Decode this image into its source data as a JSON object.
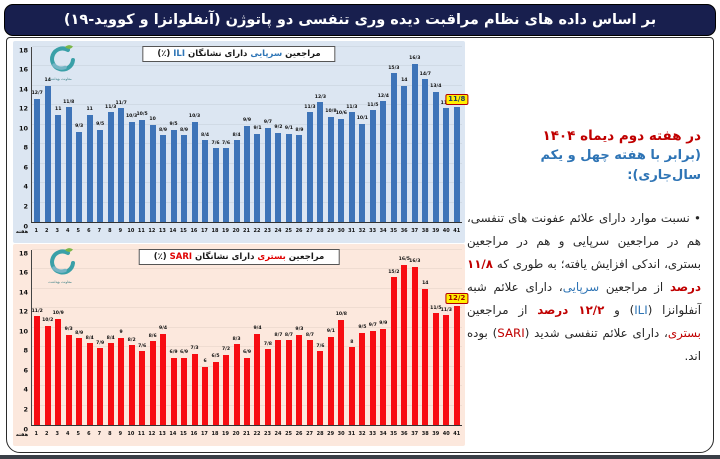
{
  "header": {
    "title": "بر اساس داده های نظام مراقبت دیده وری تنفسی دو پاتوژن (آنفلوانزا و کووید-۱۹)"
  },
  "logo": {
    "caption": "معاونت بهداشت"
  },
  "right_panel": {
    "heading_red": "در هفته دوم دیماه ۱۴۰۴",
    "heading_blue": "(برابر با هفته چهل و یکم سال‌جاری):",
    "bullet_segments": [
      {
        "t": "• نسبت موارد دارای علائم عفونت های تنفسی، هم در مراجعین سرپایی و هم در مراجعین بستری، اندکی افزایش یافته؛ به طوری که ",
        "c": "plain"
      },
      {
        "t": "۱۱/۸ درصد",
        "c": "red"
      },
      {
        "t": " از مراجعین ",
        "c": "plain"
      },
      {
        "t": "سرپایی",
        "c": "blue"
      },
      {
        "t": "، دارای علائم شبه آنفلوانزا (",
        "c": "plain"
      },
      {
        "t": "ILI",
        "c": "blue"
      },
      {
        "t": ") و ",
        "c": "plain"
      },
      {
        "t": "۱۲/۲ درصد",
        "c": "red"
      },
      {
        "t": " از مراجعین ",
        "c": "plain"
      },
      {
        "t": "بستری",
        "c": "red-plain"
      },
      {
        "t": "، دارای علائم تنفسی شدید (",
        "c": "plain"
      },
      {
        "t": "SARI",
        "c": "red-plain"
      },
      {
        "t": ") بوده اند.",
        "c": "plain"
      }
    ]
  },
  "chart_data": [
    {
      "id": "ili",
      "type": "bar",
      "title_segments": [
        {
          "t": "مراجعین ",
          "c": "plain"
        },
        {
          "t": "سرپایی",
          "c": "accent"
        },
        {
          "t": " دارای نشانگان ",
          "c": "plain"
        },
        {
          "t": "ILI",
          "c": "accent"
        },
        {
          "t": " (٪)",
          "c": "plain"
        }
      ],
      "xlabel": "هفته",
      "ylim": [
        0,
        18
      ],
      "ytick_step": 2,
      "categories": [
        1,
        2,
        3,
        4,
        5,
        6,
        7,
        8,
        9,
        10,
        11,
        12,
        13,
        14,
        15,
        16,
        17,
        18,
        19,
        20,
        21,
        22,
        23,
        24,
        25,
        26,
        27,
        28,
        29,
        30,
        31,
        32,
        33,
        34,
        35,
        36,
        37,
        38,
        39,
        40,
        41
      ],
      "values": [
        12.7,
        14,
        11,
        11.8,
        9.3,
        11,
        9.5,
        11.3,
        11.7,
        10.3,
        10.5,
        10,
        8.9,
        9.5,
        8.9,
        10.3,
        8.4,
        7.6,
        7.6,
        8.4,
        9.9,
        9.1,
        9.7,
        9.2,
        9.1,
        8.9,
        11.3,
        12.3,
        10.8,
        10.6,
        11.3,
        10.1,
        11.5,
        12.4,
        15.3,
        14,
        16.3,
        14.7,
        13.4,
        11.7,
        11.8
      ],
      "value_labels": [
        "12/7",
        "14",
        "11",
        "11/8",
        "9/3",
        "11",
        "9/5",
        "11/3",
        "11/7",
        "10/3",
        "10/5",
        "10",
        "8/9",
        "9/5",
        "8/9",
        "10/3",
        "8/4",
        "7/6",
        "7/6",
        "8/4",
        "9/9",
        "9/1",
        "9/7",
        "9/2",
        "9/1",
        "8/9",
        "11/3",
        "12/3",
        "10/8",
        "10/6",
        "11/3",
        "10/1",
        "11/5",
        "12/4",
        "15/3",
        "14",
        "16/3",
        "14/7",
        "13/4",
        "11/7",
        "11/8"
      ],
      "highlight": {
        "index": 40,
        "label": "11/8",
        "text_color": "#1f3864"
      },
      "bg_color": "#dce6f2",
      "bar_color": "#3e74b8",
      "accent_color": "#2e75b6",
      "legend_position": "none",
      "grid": true
    },
    {
      "id": "sari",
      "type": "bar",
      "title_segments": [
        {
          "t": "مراجعین ",
          "c": "plain"
        },
        {
          "t": "بستری",
          "c": "accent"
        },
        {
          "t": " دارای نشانگان ",
          "c": "plain"
        },
        {
          "t": "SARI",
          "c": "accent"
        },
        {
          "t": " (٪)",
          "c": "plain"
        }
      ],
      "xlabel": "هفته",
      "ylim": [
        0,
        18
      ],
      "ytick_step": 2,
      "categories": [
        1,
        2,
        3,
        4,
        5,
        6,
        7,
        8,
        9,
        10,
        11,
        12,
        13,
        14,
        15,
        16,
        17,
        18,
        19,
        20,
        21,
        22,
        23,
        24,
        25,
        26,
        27,
        28,
        29,
        30,
        31,
        32,
        33,
        34,
        35,
        36,
        37,
        38,
        39,
        40,
        41
      ],
      "values": [
        11.2,
        10.2,
        10.9,
        9.3,
        8.9,
        8.4,
        7.9,
        8.4,
        9,
        8.2,
        7.6,
        8.6,
        9.4,
        6.9,
        6.9,
        7.3,
        6,
        6.5,
        7.2,
        8.3,
        6.9,
        9.4,
        7.8,
        8.7,
        8.7,
        9.3,
        8.7,
        7.6,
        9.1,
        10.8,
        8,
        9.5,
        9.7,
        9.9,
        15.2,
        16.5,
        16.3,
        14,
        11.5,
        11.3,
        12.2
      ],
      "value_labels": [
        "11/2",
        "10/2",
        "10/9",
        "9/3",
        "8/9",
        "8/4",
        "7/9",
        "8/4",
        "9",
        "8/2",
        "7/6",
        "8/6",
        "9/4",
        "6/9",
        "6/9",
        "7/3",
        "6",
        "6/5",
        "7/2",
        "8/3",
        "6/9",
        "9/4",
        "7/8",
        "8/7",
        "8/7",
        "9/3",
        "8/7",
        "7/6",
        "9/1",
        "10/8",
        "8",
        "9/5",
        "9/7",
        "9/9",
        "15/2",
        "16/5",
        "16/3",
        "14",
        "11/5",
        "11/3",
        "12/2"
      ],
      "highlight": {
        "index": 40,
        "label": "12/2",
        "text_color": "#a30000"
      },
      "bg_color": "#fce8dd",
      "bar_color": "#f70d12",
      "accent_color": "#e00000",
      "legend_position": "none",
      "grid": true
    }
  ]
}
